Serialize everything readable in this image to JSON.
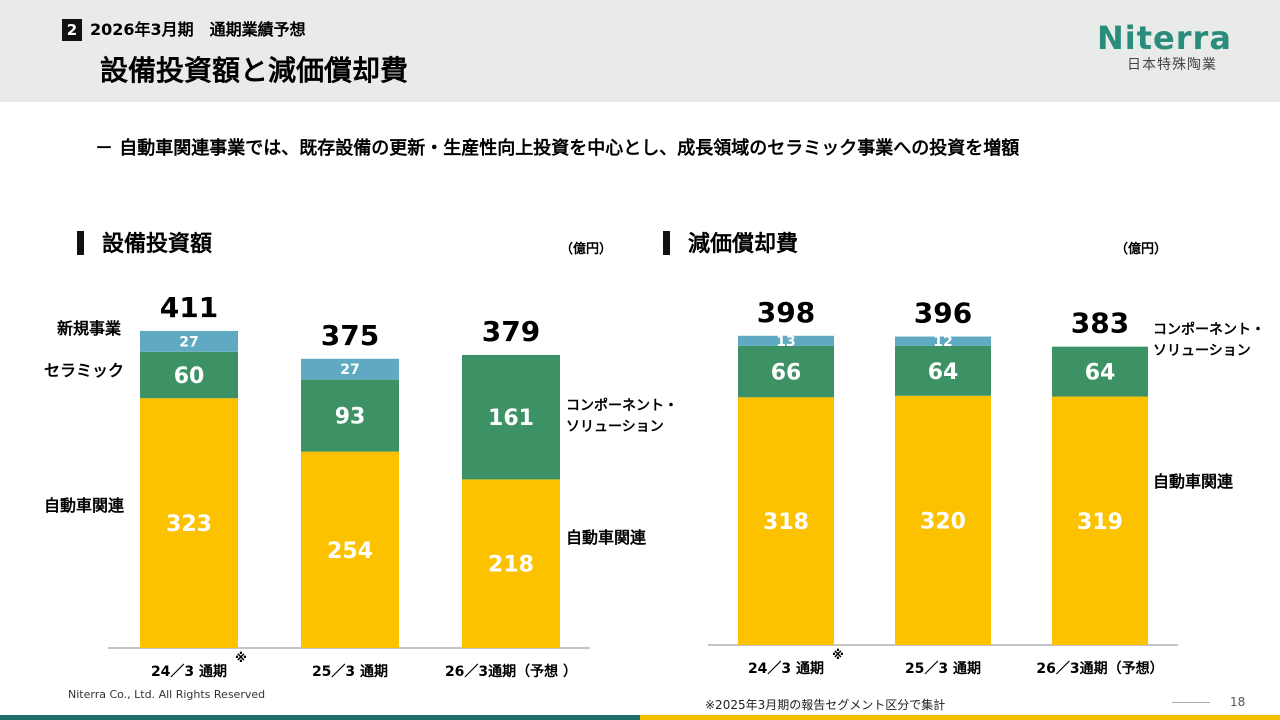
{
  "header": {
    "section_number": "2",
    "section_label": "2026年3月期　通期業績予想",
    "title": "設備投資額と減価償却費",
    "logo_name": "Niterra",
    "logo_sub": "日本特殊陶業"
  },
  "bullet": "－ 自動車関連事業では、既存設備の更新・生産性向上投資を中心とし、成長領域のセラミック事業への投資を増額",
  "colors": {
    "automotive": "#fcc200",
    "ceramic_components": "#3d9265",
    "new_business": "#5faac2",
    "axis": "#888888"
  },
  "chart_data": [
    {
      "type": "bar",
      "stacked": true,
      "title": "設備投資額",
      "unit": "（億円）",
      "categories": [
        "24／3 通期",
        "25／3 通期",
        "26／3通期（予想 ）"
      ],
      "category_marks": [
        "※",
        "",
        ""
      ],
      "series": [
        {
          "name": "自動車関連",
          "values": [
            323,
            254,
            218
          ]
        },
        {
          "name": "セラミック",
          "values": [
            60,
            null,
            null
          ]
        },
        {
          "name": "コンポーネント・ソリューション",
          "values": [
            null,
            93,
            161
          ]
        },
        {
          "name": "新規事業",
          "values": [
            27,
            27,
            null
          ]
        }
      ],
      "totals": [
        411,
        375,
        379
      ],
      "left_labels": [
        "新規事業",
        "セラミック",
        "自動車関連"
      ],
      "right_labels": [
        "コンポーネント・",
        "ソリューション",
        "自動車関連"
      ]
    },
    {
      "type": "bar",
      "stacked": true,
      "title": "減価償却費",
      "unit": "（億円）",
      "categories": [
        "24／3 通期",
        "25／3 通期",
        "26／3通期（予想）"
      ],
      "category_marks": [
        "※",
        "",
        ""
      ],
      "series": [
        {
          "name": "自動車関連",
          "values": [
            318,
            320,
            319
          ]
        },
        {
          "name": "コンポーネント・ソリューション",
          "values": [
            66,
            64,
            64
          ]
        },
        {
          "name": "新規事業",
          "values": [
            13,
            12,
            null
          ]
        }
      ],
      "totals": [
        398,
        396,
        383
      ],
      "right_labels": [
        "コンポーネント・",
        "ソリューション",
        "自動車関連"
      ]
    }
  ],
  "footer": {
    "copyright": "Niterra Co., Ltd. All Rights Reserved",
    "note": "※2025年3月期の報告セグメント区分で集計",
    "page_number": "18"
  }
}
